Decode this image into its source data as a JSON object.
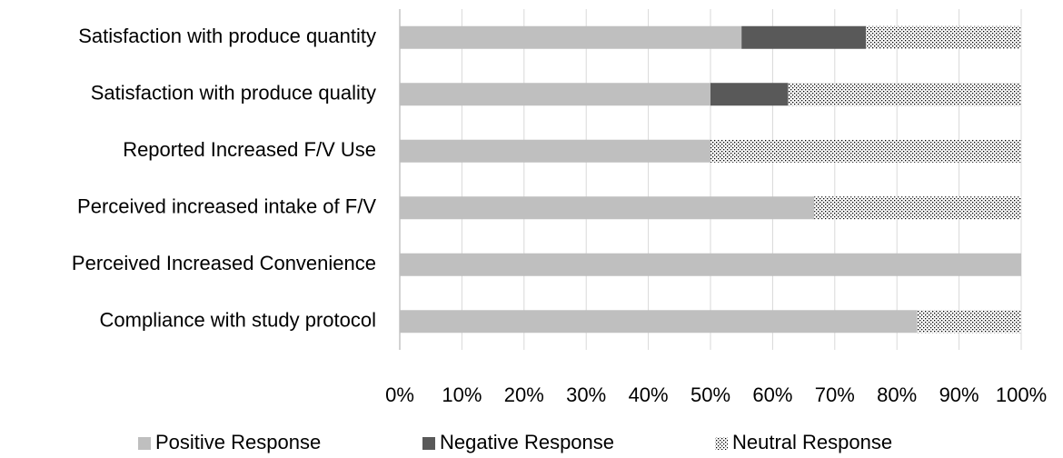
{
  "chart_data": {
    "type": "stacked-barh",
    "categories": [
      "Satisfaction with produce quantity",
      "Satisfaction with produce quality",
      "Reported Increased F/V Use",
      "Perceived increased intake of F/V",
      "Perceived Increased Convenience",
      "Compliance with study protocol"
    ],
    "series": [
      {
        "name": "Positive Response",
        "color": "#bfbfbf",
        "values": [
          55,
          50,
          50,
          66.7,
          100,
          83.3
        ]
      },
      {
        "name": "Negative Response",
        "color": "#595959",
        "values": [
          20,
          12.5,
          0,
          0,
          0,
          0
        ]
      },
      {
        "name": "Neutral Response",
        "color": "#ffffff",
        "pattern": "dots",
        "values": [
          25,
          37.5,
          50,
          33.3,
          0,
          16.7
        ]
      }
    ],
    "xlim": [
      0,
      100
    ],
    "xticks": [
      {
        "value": 0,
        "label": "0%"
      },
      {
        "value": 10,
        "label": "10%"
      },
      {
        "value": 20,
        "label": "20%"
      },
      {
        "value": 30,
        "label": "30%"
      },
      {
        "value": 40,
        "label": "40%"
      },
      {
        "value": 50,
        "label": "50%"
      },
      {
        "value": 60,
        "label": "60%"
      },
      {
        "value": 70,
        "label": "70%"
      },
      {
        "value": 80,
        "label": "80%"
      },
      {
        "value": 90,
        "label": "90%"
      },
      {
        "value": 100,
        "label": "100%"
      }
    ],
    "grid": true,
    "legend": "bottom"
  }
}
